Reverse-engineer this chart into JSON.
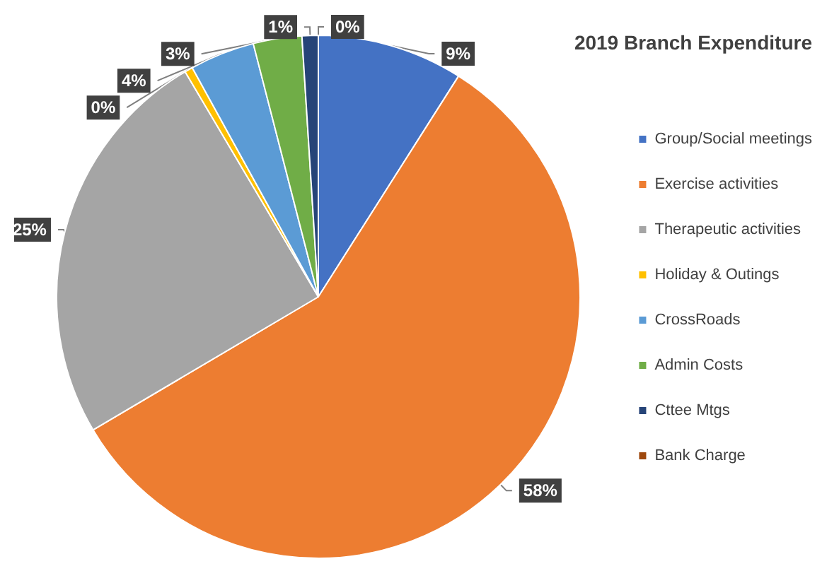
{
  "chart_data": {
    "type": "pie",
    "title": "2019 Branch Expenditure",
    "categories": [
      "Group/Social meetings",
      "Exercise activities",
      "Therapeutic activities",
      "Holiday & Outings",
      "CrossRoads",
      "Admin Costs",
      "Cttee Mtgs",
      "Bank Charge"
    ],
    "values": [
      9,
      57.5,
      25,
      0.5,
      4,
      3,
      1,
      0
    ],
    "value_labels": [
      "9%",
      "58%",
      "25%",
      "0%",
      "4%",
      "3%",
      "1%",
      "0%"
    ],
    "colors": [
      "#4472c4",
      "#ed7d31",
      "#a5a5a5",
      "#ffc000",
      "#5b9bd5",
      "#70ad47",
      "#264478",
      "#9e480e"
    ],
    "legend": "right"
  }
}
